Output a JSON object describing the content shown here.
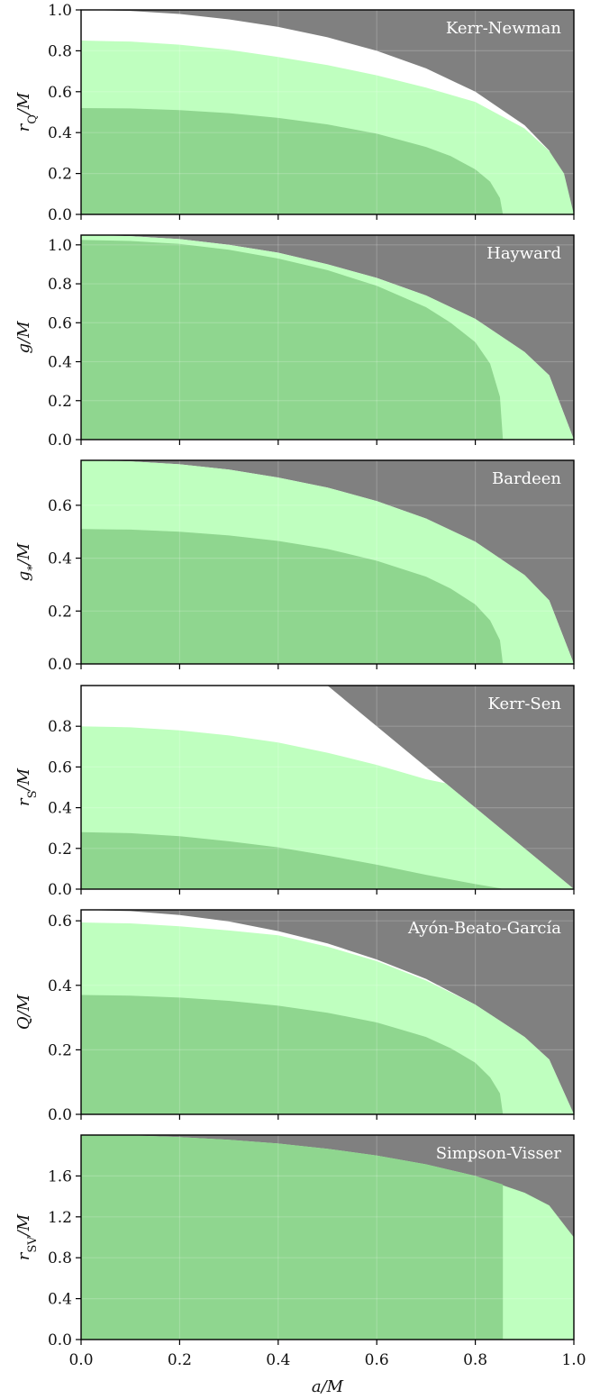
{
  "chart_data": [
    {
      "type": "area",
      "title": "Kerr-Newman",
      "ylabel": "r_Q/M",
      "xlim": [
        0,
        1
      ],
      "ylim": [
        0,
        1
      ],
      "yticks": [
        "0.0",
        "0.2",
        "0.4",
        "0.6",
        "0.8",
        "1.0"
      ],
      "yticks_values": [
        0,
        0.2,
        0.4,
        0.6,
        0.8,
        1.0
      ],
      "colors": {
        "background": "#808080",
        "allowed": "#ffffff",
        "light": "#bfffbf",
        "dark": "#8fd68f"
      },
      "regions": [
        {
          "name": "allowed",
          "color": "allowed",
          "x": [
            0,
            0.1,
            0.2,
            0.3,
            0.4,
            0.5,
            0.6,
            0.7,
            0.8,
            0.9,
            0.95,
            1.0
          ],
          "y": [
            1.0,
            0.995,
            0.98,
            0.954,
            0.917,
            0.866,
            0.8,
            0.714,
            0.6,
            0.436,
            0.312,
            0.0
          ]
        },
        {
          "name": "light",
          "color": "light",
          "x": [
            0,
            0.1,
            0.2,
            0.3,
            0.4,
            0.5,
            0.6,
            0.7,
            0.8,
            0.9,
            0.95,
            0.98,
            1.0
          ],
          "y": [
            0.85,
            0.845,
            0.83,
            0.805,
            0.77,
            0.73,
            0.68,
            0.62,
            0.55,
            0.42,
            0.31,
            0.2,
            0.0
          ]
        },
        {
          "name": "dark",
          "color": "dark",
          "x": [
            0,
            0.1,
            0.2,
            0.3,
            0.4,
            0.5,
            0.6,
            0.7,
            0.75,
            0.8,
            0.83,
            0.85,
            0.856
          ],
          "y": [
            0.52,
            0.518,
            0.51,
            0.495,
            0.472,
            0.44,
            0.395,
            0.33,
            0.285,
            0.22,
            0.16,
            0.08,
            0.0
          ]
        }
      ]
    },
    {
      "type": "area",
      "title": "Hayward",
      "ylabel": "g/M",
      "xlim": [
        0,
        1
      ],
      "ylim": [
        0,
        1.05
      ],
      "yticks": [
        "0.0",
        "0.2",
        "0.4",
        "0.6",
        "0.8",
        "1.0"
      ],
      "yticks_values": [
        0,
        0.2,
        0.4,
        0.6,
        0.8,
        1.0
      ],
      "colors": {
        "background": "#808080",
        "allowed": "#ffffff",
        "light": "#bfffbf",
        "dark": "#8fd68f"
      },
      "regions": [
        {
          "name": "allowed",
          "color": "allowed",
          "x": [
            0,
            0.1,
            0.2,
            0.3,
            0.4,
            0.5,
            0.6,
            0.7,
            0.8,
            0.9,
            0.95,
            1.0
          ],
          "y": [
            1.05,
            1.045,
            1.03,
            1.0,
            0.96,
            0.9,
            0.83,
            0.74,
            0.62,
            0.45,
            0.33,
            0.0
          ]
        },
        {
          "name": "light",
          "color": "light",
          "x": [
            0,
            0.1,
            0.2,
            0.3,
            0.4,
            0.5,
            0.6,
            0.7,
            0.8,
            0.9,
            0.95,
            1.0
          ],
          "y": [
            1.05,
            1.045,
            1.03,
            1.0,
            0.96,
            0.9,
            0.83,
            0.74,
            0.62,
            0.45,
            0.33,
            0.0
          ]
        },
        {
          "name": "dark",
          "color": "dark",
          "x": [
            0,
            0.1,
            0.2,
            0.3,
            0.4,
            0.5,
            0.6,
            0.7,
            0.75,
            0.8,
            0.83,
            0.85,
            0.856
          ],
          "y": [
            1.025,
            1.02,
            1.005,
            0.975,
            0.93,
            0.87,
            0.79,
            0.68,
            0.6,
            0.5,
            0.39,
            0.22,
            0.0
          ]
        }
      ]
    },
    {
      "type": "area",
      "title": "Bardeen",
      "ylabel": "g_*/M",
      "xlim": [
        0,
        1
      ],
      "ylim": [
        0,
        0.77
      ],
      "yticks": [
        "0.0",
        "0.2",
        "0.4",
        "0.6"
      ],
      "yticks_values": [
        0,
        0.2,
        0.4,
        0.6
      ],
      "colors": {
        "background": "#808080",
        "allowed": "#ffffff",
        "light": "#bfffbf",
        "dark": "#8fd68f"
      },
      "regions": [
        {
          "name": "allowed",
          "color": "allowed",
          "x": [
            0,
            0.1,
            0.2,
            0.3,
            0.4,
            0.5,
            0.6,
            0.7,
            0.8,
            0.9,
            0.95,
            1.0
          ],
          "y": [
            0.77,
            0.766,
            0.755,
            0.735,
            0.705,
            0.667,
            0.616,
            0.55,
            0.462,
            0.336,
            0.24,
            0.0
          ]
        },
        {
          "name": "light",
          "color": "light",
          "x": [
            0,
            0.1,
            0.2,
            0.3,
            0.4,
            0.5,
            0.6,
            0.7,
            0.8,
            0.9,
            0.95,
            1.0
          ],
          "y": [
            0.77,
            0.766,
            0.755,
            0.735,
            0.705,
            0.667,
            0.616,
            0.55,
            0.462,
            0.336,
            0.24,
            0.0
          ]
        },
        {
          "name": "dark",
          "color": "dark",
          "x": [
            0,
            0.1,
            0.2,
            0.3,
            0.4,
            0.5,
            0.6,
            0.7,
            0.75,
            0.8,
            0.83,
            0.85,
            0.856
          ],
          "y": [
            0.51,
            0.508,
            0.5,
            0.486,
            0.465,
            0.435,
            0.39,
            0.33,
            0.285,
            0.225,
            0.165,
            0.09,
            0.0
          ]
        }
      ]
    },
    {
      "type": "area",
      "title": "Kerr-Sen",
      "ylabel": "r_S/M",
      "xlim": [
        0,
        1
      ],
      "ylim": [
        0,
        1
      ],
      "yticks": [
        "0.0",
        "0.2",
        "0.4",
        "0.6",
        "0.8"
      ],
      "yticks_values": [
        0,
        0.2,
        0.4,
        0.6,
        0.8
      ],
      "colors": {
        "background": "#808080",
        "allowed": "#ffffff",
        "light": "#bfffbf",
        "dark": "#8fd68f"
      },
      "regions": [
        {
          "name": "allowed",
          "color": "allowed",
          "x": [
            0,
            0.5,
            1.0
          ],
          "y": [
            1.0,
            1.0,
            0.0
          ]
        },
        {
          "name": "light",
          "color": "light",
          "x": [
            0,
            0.1,
            0.2,
            0.3,
            0.4,
            0.5,
            0.6,
            0.7,
            0.74,
            1.0
          ],
          "y": [
            0.8,
            0.795,
            0.78,
            0.755,
            0.72,
            0.67,
            0.61,
            0.54,
            0.52,
            0.0
          ]
        },
        {
          "name": "dark",
          "color": "dark",
          "x": [
            0,
            0.1,
            0.2,
            0.3,
            0.4,
            0.5,
            0.6,
            0.7,
            0.8,
            0.86
          ],
          "y": [
            0.28,
            0.275,
            0.26,
            0.235,
            0.205,
            0.165,
            0.12,
            0.07,
            0.025,
            0.0
          ]
        }
      ]
    },
    {
      "type": "area",
      "title": "Ayón-Beato-García",
      "ylabel": "Q/M",
      "xlim": [
        0,
        1
      ],
      "ylim": [
        0,
        0.634
      ],
      "yticks": [
        "0.0",
        "0.2",
        "0.4",
        "0.6"
      ],
      "yticks_values": [
        0,
        0.2,
        0.4,
        0.6
      ],
      "colors": {
        "background": "#808080",
        "allowed": "#ffffff",
        "light": "#bfffbf",
        "dark": "#8fd68f"
      },
      "regions": [
        {
          "name": "allowed",
          "color": "allowed",
          "x": [
            0,
            0.1,
            0.2,
            0.3,
            0.4,
            0.5,
            0.6,
            0.7,
            0.8,
            0.9,
            0.95,
            1.0
          ],
          "y": [
            0.634,
            0.63,
            0.618,
            0.598,
            0.568,
            0.53,
            0.48,
            0.42,
            0.34,
            0.24,
            0.17,
            0.0
          ]
        },
        {
          "name": "light",
          "color": "light",
          "x": [
            0,
            0.1,
            0.2,
            0.3,
            0.4,
            0.5,
            0.6,
            0.7,
            0.8,
            0.9,
            0.95,
            1.0
          ],
          "y": [
            0.595,
            0.592,
            0.583,
            0.57,
            0.555,
            0.52,
            0.475,
            0.415,
            0.34,
            0.24,
            0.17,
            0.0
          ]
        },
        {
          "name": "dark",
          "color": "dark",
          "x": [
            0,
            0.1,
            0.2,
            0.3,
            0.4,
            0.5,
            0.6,
            0.7,
            0.75,
            0.8,
            0.83,
            0.85,
            0.856
          ],
          "y": [
            0.37,
            0.368,
            0.362,
            0.352,
            0.337,
            0.315,
            0.285,
            0.24,
            0.205,
            0.16,
            0.115,
            0.065,
            0.0
          ]
        }
      ]
    },
    {
      "type": "area",
      "title": "Simpson-Visser",
      "ylabel": "r_SV/M",
      "xlabel": "a/M",
      "xlim": [
        0,
        1
      ],
      "ylim": [
        0,
        2.0
      ],
      "yticks": [
        "0.0",
        "0.4",
        "0.8",
        "1.2",
        "1.6"
      ],
      "yticks_values": [
        0,
        0.4,
        0.8,
        1.2,
        1.6
      ],
      "xticks": [
        "0.0",
        "0.2",
        "0.4",
        "0.6",
        "0.8",
        "1.0"
      ],
      "xticks_values": [
        0,
        0.2,
        0.4,
        0.6,
        0.8,
        1.0
      ],
      "colors": {
        "background": "#808080",
        "allowed": "#ffffff",
        "light": "#bfffbf",
        "dark": "#8fd68f"
      },
      "regions": [
        {
          "name": "light",
          "color": "light",
          "x": [
            0,
            0.1,
            0.2,
            0.3,
            0.4,
            0.5,
            0.6,
            0.7,
            0.8,
            0.9,
            0.95,
            1.0
          ],
          "y": [
            2.0,
            1.997,
            1.98,
            1.954,
            1.917,
            1.866,
            1.8,
            1.714,
            1.6,
            1.436,
            1.312,
            1.0
          ]
        },
        {
          "name": "dark",
          "color": "dark",
          "x": [
            0,
            0.1,
            0.2,
            0.3,
            0.4,
            0.5,
            0.6,
            0.7,
            0.8,
            0.856,
            0.856
          ],
          "y": [
            2.0,
            1.997,
            1.98,
            1.954,
            1.917,
            1.866,
            1.8,
            1.714,
            1.6,
            1.517,
            0.0
          ]
        }
      ]
    }
  ]
}
